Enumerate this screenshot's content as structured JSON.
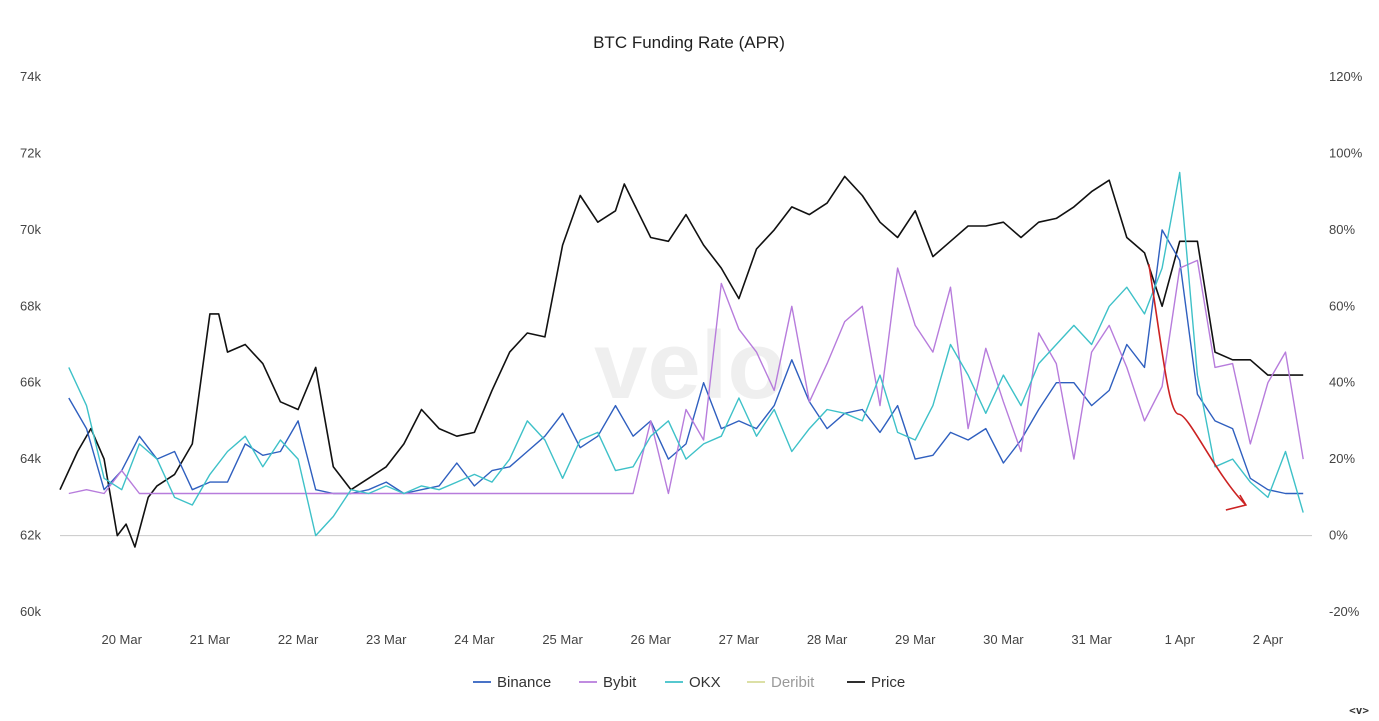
{
  "chart_data": {
    "type": "line",
    "title": "BTC Funding Rate (APR)",
    "watermark": "velo",
    "x_ticks": [
      "20 Mar",
      "21 Mar",
      "22 Mar",
      "23 Mar",
      "24 Mar",
      "25 Mar",
      "26 Mar",
      "27 Mar",
      "28 Mar",
      "29 Mar",
      "30 Mar",
      "31 Mar",
      "1 Apr",
      "2 Apr"
    ],
    "x_range": [
      19.3,
      33.5
    ],
    "y_left": {
      "ticks": [
        "74k",
        "72k",
        "70k",
        "68k",
        "66k",
        "64k",
        "62k",
        "60k"
      ],
      "range": [
        60000,
        74000
      ]
    },
    "y_right": {
      "ticks": [
        "120%",
        "100%",
        "80%",
        "60%",
        "40%",
        "20%",
        "0%",
        "-20%"
      ],
      "range": [
        -20,
        120
      ]
    },
    "zero_line": 0,
    "legend_position": "bottom-center",
    "series": [
      {
        "name": "Binance",
        "color": "#2f5fbf",
        "axis": "right",
        "muted": false,
        "x": [
          19.4,
          19.6,
          19.8,
          20.0,
          20.2,
          20.4,
          20.6,
          20.8,
          21.0,
          21.2,
          21.4,
          21.6,
          21.8,
          22.0,
          22.2,
          22.4,
          22.6,
          22.8,
          23.0,
          23.2,
          23.4,
          23.6,
          23.8,
          24.0,
          24.2,
          24.4,
          24.6,
          24.8,
          25.0,
          25.2,
          25.4,
          25.6,
          25.8,
          26.0,
          26.2,
          26.4,
          26.6,
          26.8,
          27.0,
          27.2,
          27.4,
          27.6,
          27.8,
          28.0,
          28.2,
          28.4,
          28.6,
          28.8,
          29.0,
          29.2,
          29.4,
          29.6,
          29.8,
          30.0,
          30.2,
          30.4,
          30.6,
          30.8,
          31.0,
          31.2,
          31.4,
          31.6,
          31.8,
          32.0,
          32.2,
          32.4,
          32.6,
          32.8,
          33.0,
          33.2,
          33.4
        ],
        "y": [
          36,
          28,
          12,
          17,
          26,
          20,
          22,
          12,
          14,
          14,
          24,
          21,
          22,
          30,
          12,
          11,
          11,
          12,
          14,
          11,
          12,
          13,
          19,
          13,
          17,
          18,
          22,
          26,
          32,
          23,
          26,
          34,
          26,
          30,
          20,
          24,
          40,
          28,
          30,
          28,
          34,
          46,
          35,
          28,
          32,
          33,
          27,
          34,
          20,
          21,
          27,
          25,
          28,
          19,
          25,
          33,
          40,
          40,
          34,
          38,
          50,
          44,
          80,
          72,
          37,
          30,
          28,
          15,
          12,
          11,
          11
        ]
      },
      {
        "name": "Bybit",
        "color": "#b77cdc",
        "axis": "right",
        "muted": false,
        "x": [
          19.4,
          19.6,
          19.8,
          20.0,
          20.2,
          20.4,
          20.6,
          20.8,
          21.0,
          21.5,
          22.0,
          22.5,
          23.0,
          23.5,
          24.0,
          24.5,
          25.0,
          25.5,
          25.8,
          26.0,
          26.2,
          26.4,
          26.6,
          26.8,
          27.0,
          27.2,
          27.4,
          27.6,
          27.8,
          28.0,
          28.2,
          28.4,
          28.6,
          28.8,
          29.0,
          29.2,
          29.4,
          29.6,
          29.8,
          30.0,
          30.2,
          30.4,
          30.6,
          30.8,
          31.0,
          31.2,
          31.4,
          31.6,
          31.8,
          32.0,
          32.2,
          32.4,
          32.6,
          32.8,
          33.0,
          33.2,
          33.4
        ],
        "y": [
          11,
          12,
          11,
          17,
          11,
          11,
          11,
          11,
          11,
          11,
          11,
          11,
          11,
          11,
          11,
          11,
          11,
          11,
          11,
          30,
          11,
          33,
          25,
          66,
          54,
          48,
          38,
          60,
          35,
          45,
          56,
          60,
          34,
          70,
          55,
          48,
          65,
          28,
          49,
          35,
          22,
          53,
          45,
          20,
          48,
          55,
          44,
          30,
          39,
          70,
          72,
          44,
          45,
          24,
          40,
          48,
          20
        ]
      },
      {
        "name": "OKX",
        "color": "#3ec1c8",
        "axis": "right",
        "muted": false,
        "x": [
          19.4,
          19.6,
          19.8,
          20.0,
          20.2,
          20.4,
          20.6,
          20.8,
          21.0,
          21.2,
          21.4,
          21.6,
          21.8,
          22.0,
          22.2,
          22.4,
          22.6,
          22.8,
          23.0,
          23.2,
          23.4,
          23.6,
          23.8,
          24.0,
          24.2,
          24.4,
          24.6,
          24.8,
          25.0,
          25.2,
          25.4,
          25.6,
          25.8,
          26.0,
          26.2,
          26.4,
          26.6,
          26.8,
          27.0,
          27.2,
          27.4,
          27.6,
          27.8,
          28.0,
          28.2,
          28.4,
          28.6,
          28.8,
          29.0,
          29.2,
          29.4,
          29.6,
          29.8,
          30.0,
          30.2,
          30.4,
          30.6,
          30.8,
          31.0,
          31.2,
          31.4,
          31.6,
          31.8,
          32.0,
          32.2,
          32.4,
          32.6,
          32.8,
          33.0,
          33.2,
          33.4
        ],
        "y": [
          44,
          34,
          15,
          12,
          24,
          20,
          10,
          8,
          16,
          22,
          26,
          18,
          25,
          20,
          0,
          5,
          12,
          11,
          13,
          11,
          13,
          12,
          14,
          16,
          14,
          20,
          30,
          25,
          15,
          25,
          27,
          17,
          18,
          26,
          30,
          20,
          24,
          26,
          36,
          26,
          33,
          22,
          28,
          33,
          32,
          30,
          42,
          27,
          25,
          34,
          50,
          42,
          32,
          42,
          34,
          45,
          50,
          55,
          50,
          60,
          65,
          58,
          70,
          95,
          42,
          18,
          20,
          14,
          10,
          22,
          6
        ]
      },
      {
        "name": "Deribit",
        "color": "#d7dc9a",
        "axis": "right",
        "muted": true,
        "x": [],
        "y": []
      },
      {
        "name": "Price",
        "color": "#111111",
        "axis": "left",
        "muted": false,
        "x": [
          19.3,
          19.5,
          19.65,
          19.8,
          19.95,
          20.05,
          20.15,
          20.3,
          20.4,
          20.6,
          20.8,
          21.0,
          21.1,
          21.2,
          21.4,
          21.6,
          21.8,
          22.0,
          22.2,
          22.4,
          22.6,
          22.8,
          23.0,
          23.2,
          23.4,
          23.6,
          23.8,
          24.0,
          24.2,
          24.4,
          24.6,
          24.8,
          25.0,
          25.2,
          25.4,
          25.6,
          25.7,
          25.85,
          26.0,
          26.2,
          26.4,
          26.6,
          26.8,
          27.0,
          27.2,
          27.4,
          27.6,
          27.8,
          28.0,
          28.2,
          28.4,
          28.6,
          28.8,
          29.0,
          29.2,
          29.4,
          29.6,
          29.8,
          30.0,
          30.2,
          30.4,
          30.6,
          30.8,
          31.0,
          31.2,
          31.4,
          31.6,
          31.8,
          32.0,
          32.2,
          32.4,
          32.6,
          32.8,
          33.0,
          33.2,
          33.4
        ],
        "y": [
          63200,
          64200,
          64800,
          64000,
          62000,
          62300,
          61700,
          63000,
          63300,
          63600,
          64400,
          67800,
          67800,
          66800,
          67000,
          66500,
          65500,
          65300,
          66400,
          63800,
          63200,
          63500,
          63800,
          64400,
          65300,
          64800,
          64600,
          64700,
          65800,
          66800,
          67300,
          67200,
          69600,
          70900,
          70200,
          70500,
          71200,
          70500,
          69800,
          69700,
          70400,
          69600,
          69000,
          68200,
          69500,
          70000,
          70600,
          70400,
          70700,
          71400,
          70900,
          70200,
          69800,
          70500,
          69300,
          69700,
          70100,
          70100,
          70200,
          69800,
          70200,
          70300,
          70600,
          71000,
          71300,
          69800,
          69400,
          68000,
          69700,
          69700,
          66800,
          66600,
          66600,
          66200,
          66200,
          66200
        ]
      }
    ],
    "annotation": {
      "type": "arrow",
      "color": "#cc2222",
      "from": [
        31.65,
        71
      ],
      "to": [
        32.75,
        8
      ]
    }
  }
}
